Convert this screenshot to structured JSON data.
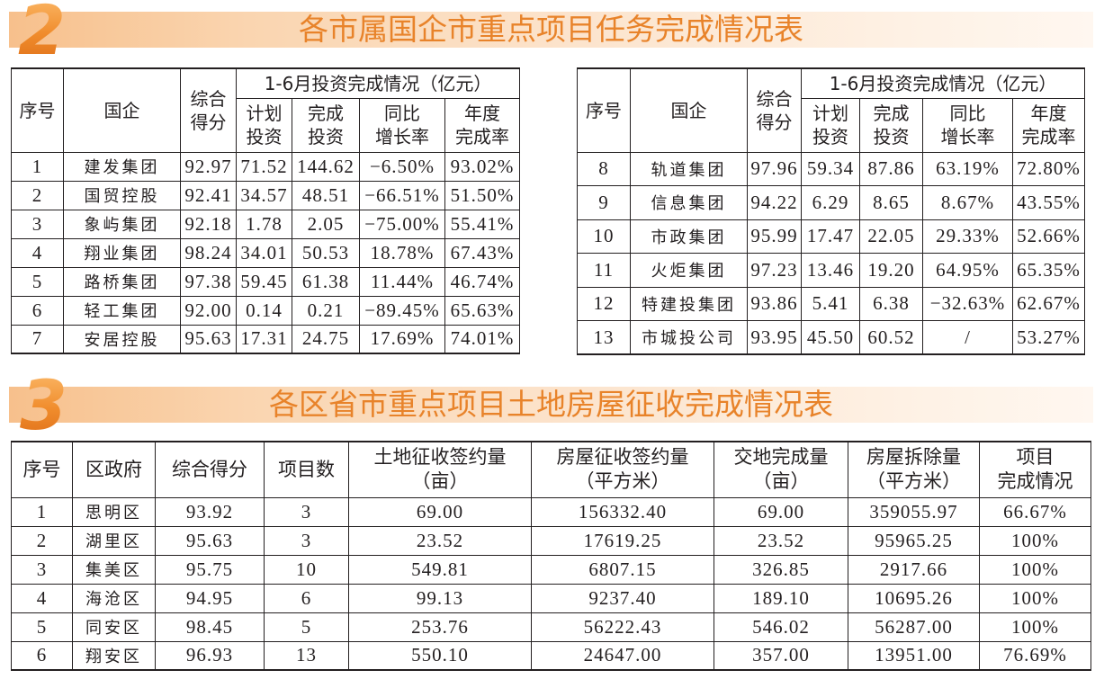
{
  "section2": {
    "number": "2",
    "title": "各市属国企市重点项目任务完成情况表",
    "headers": {
      "no": "序号",
      "company": "国企",
      "score": "综合\n得分",
      "group": "1-6月投资完成情况（亿元）",
      "plan": "计划\n投资",
      "done": "完成\n投资",
      "yoy": "同比\n增长率",
      "annual": "年度\n完成率"
    },
    "left_rows": [
      {
        "no": "1",
        "company": "建发集团",
        "score": "92.97",
        "plan": "71.52",
        "done": "144.62",
        "yoy": "−6.50%",
        "annual": "93.02%"
      },
      {
        "no": "2",
        "company": "国贸控股",
        "score": "92.41",
        "plan": "34.57",
        "done": "48.51",
        "yoy": "−66.51%",
        "annual": "51.50%"
      },
      {
        "no": "3",
        "company": "象屿集团",
        "score": "92.18",
        "plan": "1.78",
        "done": "2.05",
        "yoy": "−75.00%",
        "annual": "55.41%"
      },
      {
        "no": "4",
        "company": "翔业集团",
        "score": "98.24",
        "plan": "34.01",
        "done": "50.53",
        "yoy": "18.78%",
        "annual": "67.43%"
      },
      {
        "no": "5",
        "company": "路桥集团",
        "score": "97.38",
        "plan": "59.45",
        "done": "61.38",
        "yoy": "11.44%",
        "annual": "46.74%"
      },
      {
        "no": "6",
        "company": "轻工集团",
        "score": "92.00",
        "plan": "0.14",
        "done": "0.21",
        "yoy": "−89.45%",
        "annual": "65.63%"
      },
      {
        "no": "7",
        "company": "安居控股",
        "score": "95.63",
        "plan": "17.31",
        "done": "24.75",
        "yoy": "17.69%",
        "annual": "74.01%"
      }
    ],
    "right_rows": [
      {
        "no": "8",
        "company": "轨道集团",
        "score": "97.96",
        "plan": "59.34",
        "done": "87.86",
        "yoy": "63.19%",
        "annual": "72.80%"
      },
      {
        "no": "9",
        "company": "信息集团",
        "score": "94.22",
        "plan": "6.29",
        "done": "8.65",
        "yoy": "8.67%",
        "annual": "43.55%"
      },
      {
        "no": "10",
        "company": "市政集团",
        "score": "95.99",
        "plan": "17.47",
        "done": "22.05",
        "yoy": "29.33%",
        "annual": "52.66%"
      },
      {
        "no": "11",
        "company": "火炬集团",
        "score": "97.23",
        "plan": "13.46",
        "done": "19.20",
        "yoy": "64.95%",
        "annual": "65.35%"
      },
      {
        "no": "12",
        "company": "特建投集团",
        "score": "93.86",
        "plan": "5.41",
        "done": "6.38",
        "yoy": "−32.63%",
        "annual": "62.67%"
      },
      {
        "no": "13",
        "company": "市城投公司",
        "score": "93.95",
        "plan": "45.50",
        "done": "60.52",
        "yoy": "/",
        "annual": "53.27%"
      }
    ]
  },
  "section3": {
    "number": "3",
    "title": "各区省市重点项目土地房屋征收完成情况表",
    "headers": {
      "no": "序号",
      "district": "区政府",
      "score": "综合得分",
      "projects": "项目数",
      "land_sign": "土地征收签约量\n（亩）",
      "house_sign": "房屋征收签约量\n（平方米）",
      "land_handover": "交地完成量\n（亩）",
      "demolition": "房屋拆除量\n（平方米）",
      "completion": "项目\n完成情况"
    },
    "rows": [
      {
        "no": "1",
        "district": "思明区",
        "score": "93.92",
        "projects": "3",
        "land_sign": "69.00",
        "house_sign": "156332.40",
        "land_handover": "69.00",
        "demolition": "359055.97",
        "completion": "66.67%"
      },
      {
        "no": "2",
        "district": "湖里区",
        "score": "95.63",
        "projects": "3",
        "land_sign": "23.52",
        "house_sign": "17619.25",
        "land_handover": "23.52",
        "demolition": "95965.25",
        "completion": "100%"
      },
      {
        "no": "3",
        "district": "集美区",
        "score": "95.75",
        "projects": "10",
        "land_sign": "549.81",
        "house_sign": "6807.15",
        "land_handover": "326.85",
        "demolition": "2917.66",
        "completion": "100%"
      },
      {
        "no": "4",
        "district": "海沧区",
        "score": "94.95",
        "projects": "6",
        "land_sign": "99.13",
        "house_sign": "9237.40",
        "land_handover": "189.10",
        "demolition": "10695.26",
        "completion": "100%"
      },
      {
        "no": "5",
        "district": "同安区",
        "score": "98.45",
        "projects": "5",
        "land_sign": "253.76",
        "house_sign": "56222.43",
        "land_handover": "546.02",
        "demolition": "56287.00",
        "completion": "100%"
      },
      {
        "no": "6",
        "district": "翔安区",
        "score": "96.93",
        "projects": "13",
        "land_sign": "550.10",
        "house_sign": "24647.00",
        "land_handover": "357.00",
        "demolition": "13951.00",
        "completion": "76.69%"
      }
    ]
  },
  "colors": {
    "accent": "#e8832a",
    "band": "#f7c08c",
    "text": "#231f20"
  }
}
